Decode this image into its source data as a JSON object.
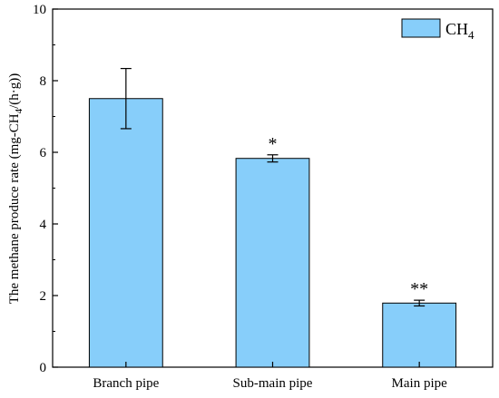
{
  "chart_data": {
    "type": "bar",
    "categories": [
      "Branch pipe",
      "Sub-main pipe",
      "Main pipe"
    ],
    "values": [
      7.5,
      5.83,
      1.79
    ],
    "error_bars": [
      0.84,
      0.1,
      0.08
    ],
    "significance": [
      "",
      "*",
      "**"
    ],
    "series": [
      {
        "name": "CH4",
        "values": [
          7.5,
          5.83,
          1.79
        ]
      }
    ],
    "legend": {
      "label_base": "CH",
      "label_sub": "4",
      "position": "top-right"
    },
    "ylabel": {
      "prefix": "The methane produce rate (mg-CH",
      "sub": "4",
      "suffix": "/(h·g))"
    },
    "xlabel": "",
    "ylim": [
      0,
      10
    ],
    "yticks": [
      "0",
      "2",
      "4",
      "6",
      "8",
      "10"
    ],
    "grid": false,
    "colors": {
      "bar_fill": "#87cefa",
      "bar_stroke": "#000000"
    }
  }
}
